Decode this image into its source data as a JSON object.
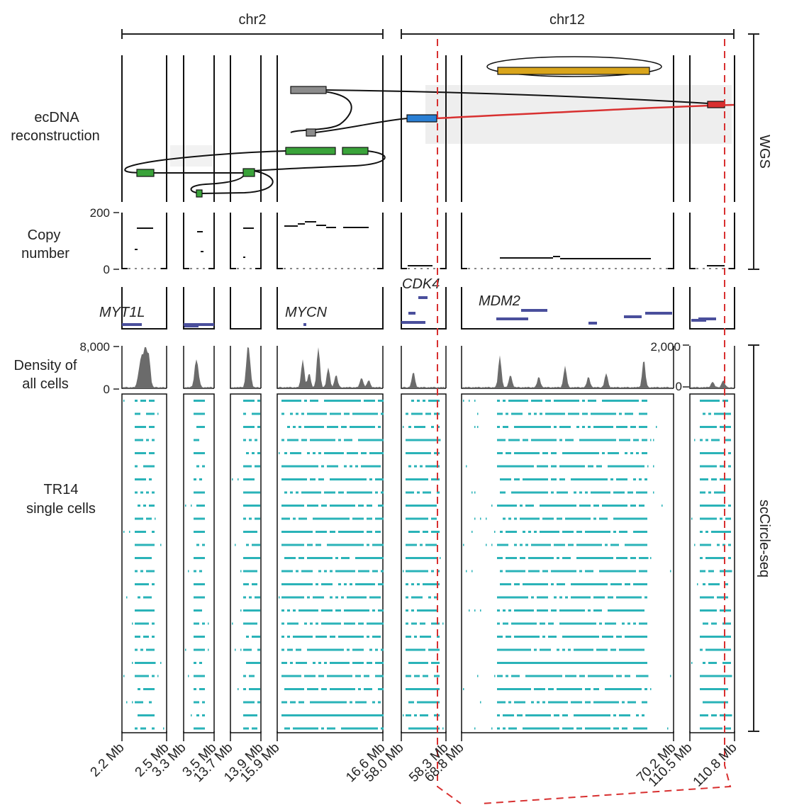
{
  "chromosomes": [
    {
      "name": "chr2"
    },
    {
      "name": "chr12"
    }
  ],
  "track_labels": {
    "ecdna": [
      "ecDNA",
      "reconstruction"
    ],
    "copy_number": [
      "Copy",
      "number"
    ],
    "density": [
      "Density of",
      "all cells"
    ],
    "single_cells": [
      "TR14",
      "single cells"
    ]
  },
  "side_labels": {
    "wgs": "WGS",
    "sccircle": "scCircle-seq"
  },
  "chart_data": {
    "type": "genome-track",
    "segments": [
      {
        "chrom": "chr2",
        "start_label": "2.2 Mb",
        "end_label": "2.5 Mb"
      },
      {
        "chrom": "chr2",
        "start_label": "3.3 Mb",
        "end_label": "3.5 Mb"
      },
      {
        "chrom": "chr2",
        "start_label": "13.7 Mb",
        "end_label": "13.9 Mb"
      },
      {
        "chrom": "chr2",
        "start_label": "15.9 Mb",
        "end_label": "16.6 Mb"
      },
      {
        "chrom": "chr12",
        "start_label": "58.0 Mb",
        "end_label": "58.3 Mb"
      },
      {
        "chrom": "chr12",
        "start_label": "68.8 Mb",
        "end_label": "70.2 Mb"
      },
      {
        "chrom": "chr12",
        "start_label": "110.5 Mb",
        "end_label": "110.8 Mb"
      }
    ],
    "genes": [
      "MYT1L",
      "MYCN",
      "CDK4",
      "MDM2"
    ],
    "copy_number_axis": {
      "ticks": [
        "0",
        "200"
      ],
      "ylim": [
        0,
        200
      ]
    },
    "density_axis_left": {
      "ticks": [
        "0",
        "8,000"
      ],
      "ylim": [
        0,
        8000
      ]
    },
    "density_axis_right": {
      "ticks": [
        "0",
        "2,000"
      ],
      "ylim": [
        0,
        2000
      ]
    },
    "ecdna_colors": {
      "chr2_segments": "#3aa33a",
      "chr2_links": "#8c8c8c",
      "chr12_blue": "#2a7fd4",
      "chr12_red": "#d83030",
      "chr12_gold": "#d9a51c"
    },
    "cell_track_color": "#2ab3b8",
    "single_cell_rows": 26
  }
}
